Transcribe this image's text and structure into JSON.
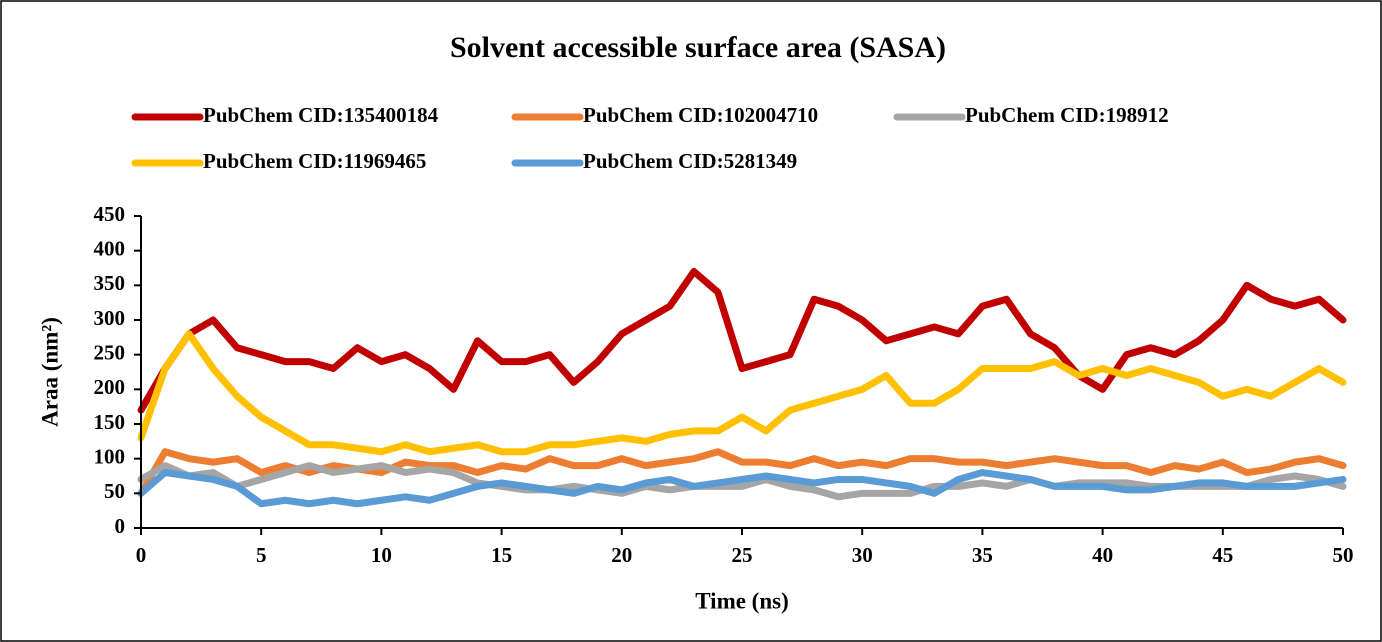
{
  "chart_data": {
    "type": "line",
    "title": "Solvent accessible surface area (SASA)",
    "x_label": "Time (ns)",
    "y_label": "Araa (nm²)",
    "x": [
      0,
      1,
      2,
      3,
      4,
      5,
      6,
      7,
      8,
      9,
      10,
      11,
      12,
      13,
      14,
      15,
      16,
      17,
      18,
      19,
      20,
      21,
      22,
      23,
      24,
      25,
      26,
      27,
      28,
      29,
      30,
      31,
      32,
      33,
      34,
      35,
      36,
      37,
      38,
      39,
      40,
      41,
      42,
      43,
      44,
      45,
      46,
      47,
      48,
      49,
      50
    ],
    "series": [
      {
        "name": "PubChem CID:135400184",
        "color": "#c00000",
        "values": [
          170,
          230,
          280,
          300,
          260,
          250,
          240,
          240,
          230,
          260,
          240,
          250,
          230,
          200,
          270,
          240,
          240,
          250,
          210,
          240,
          280,
          300,
          320,
          370,
          340,
          230,
          240,
          250,
          330,
          320,
          300,
          270,
          280,
          290,
          280,
          320,
          330,
          280,
          260,
          220,
          200,
          250,
          260,
          250,
          270,
          300,
          350,
          330,
          320,
          330,
          300
        ]
      },
      {
        "name": "PubChem CID:102004710",
        "color": "#ed7d31",
        "values": [
          50,
          110,
          100,
          95,
          100,
          80,
          90,
          80,
          90,
          85,
          80,
          95,
          90,
          90,
          80,
          90,
          85,
          100,
          90,
          90,
          100,
          90,
          95,
          100,
          110,
          95,
          95,
          90,
          100,
          90,
          95,
          90,
          100,
          100,
          95,
          95,
          90,
          95,
          100,
          95,
          90,
          90,
          80,
          90,
          85,
          95,
          80,
          85,
          95,
          100,
          90
        ]
      },
      {
        "name": "PubChem CID:198912",
        "color": "#a5a5a5",
        "values": [
          70,
          90,
          75,
          80,
          60,
          70,
          80,
          90,
          80,
          85,
          90,
          80,
          85,
          80,
          65,
          60,
          55,
          55,
          60,
          55,
          50,
          60,
          55,
          60,
          60,
          60,
          70,
          60,
          55,
          45,
          50,
          50,
          50,
          60,
          60,
          65,
          60,
          70,
          60,
          65,
          65,
          65,
          60,
          60,
          60,
          60,
          60,
          70,
          75,
          70,
          60
        ]
      },
      {
        "name": "PubChem CID:11969465",
        "color": "#ffc000",
        "values": [
          130,
          230,
          280,
          230,
          190,
          160,
          140,
          120,
          120,
          115,
          110,
          120,
          110,
          115,
          120,
          110,
          110,
          120,
          120,
          125,
          130,
          125,
          135,
          140,
          140,
          160,
          140,
          170,
          180,
          190,
          200,
          220,
          180,
          180,
          200,
          230,
          230,
          230,
          240,
          220,
          230,
          220,
          230,
          220,
          210,
          190,
          200,
          190,
          210,
          230,
          210
        ]
      },
      {
        "name": "PubChem CID:5281349",
        "color": "#5b9bd5",
        "values": [
          50,
          80,
          75,
          70,
          60,
          35,
          40,
          35,
          40,
          35,
          40,
          45,
          40,
          50,
          60,
          65,
          60,
          55,
          50,
          60,
          55,
          65,
          70,
          60,
          65,
          70,
          75,
          70,
          65,
          70,
          70,
          65,
          60,
          50,
          70,
          80,
          75,
          70,
          60,
          60,
          60,
          55,
          55,
          60,
          65,
          65,
          60,
          60,
          60,
          65,
          70
        ]
      }
    ],
    "xlim": [
      0,
      50
    ],
    "xticks": [
      0,
      5,
      10,
      15,
      20,
      25,
      30,
      35,
      40,
      45,
      50
    ],
    "ylim": [
      0,
      450
    ],
    "yticks": [
      0,
      50,
      100,
      150,
      200,
      250,
      300,
      350,
      400,
      450
    ]
  }
}
